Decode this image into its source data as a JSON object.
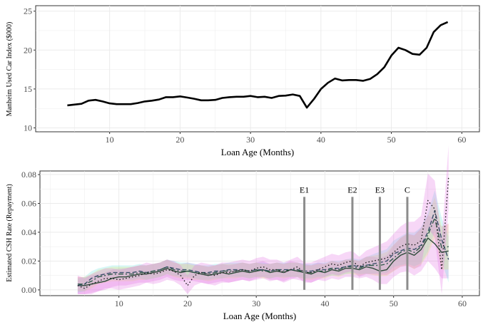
{
  "chart_data": [
    {
      "type": "line",
      "xlabel": "Loan Age (Months)",
      "ylabel": "Manheim Used Car Index ($000)",
      "xlim": [
        -0.5,
        62.5
      ],
      "ylim": [
        9.5,
        25.7
      ],
      "xticks": [
        10,
        20,
        30,
        40,
        50,
        60
      ],
      "yticks": [
        10,
        15,
        20,
        25
      ],
      "grid": true,
      "series": [
        {
          "x": [
            4,
            5,
            6,
            7,
            8,
            9,
            10,
            11,
            12,
            13,
            14,
            15,
            16,
            17,
            18,
            19,
            20,
            21,
            22,
            23,
            24,
            25,
            26,
            27,
            28,
            29,
            30,
            31,
            32,
            33,
            34,
            35,
            36,
            37,
            38,
            39,
            40,
            41,
            42,
            43,
            44,
            45,
            46,
            47,
            48,
            49,
            50,
            51,
            52,
            53,
            54,
            55,
            56,
            57,
            58
          ],
          "values": [
            12.9,
            13.0,
            13.1,
            13.5,
            13.6,
            13.4,
            13.15,
            13.05,
            13.05,
            13.05,
            13.2,
            13.4,
            13.5,
            13.65,
            13.95,
            13.95,
            14.05,
            13.9,
            13.75,
            13.55,
            13.55,
            13.6,
            13.85,
            13.95,
            14.0,
            14.0,
            14.1,
            13.95,
            14.0,
            13.85,
            14.1,
            14.15,
            14.3,
            14.1,
            12.6,
            13.7,
            15.0,
            15.8,
            16.35,
            16.1,
            16.15,
            16.15,
            16.05,
            16.3,
            16.9,
            17.8,
            19.3,
            20.3,
            20.0,
            19.5,
            19.4,
            20.3,
            22.3,
            23.2,
            23.6
          ]
        }
      ]
    },
    {
      "type": "line",
      "xlabel": "Loan Age (Months)",
      "ylabel": "Estimated CSH Rate (Repayment)",
      "xlim": [
        -1.5,
        62.5
      ],
      "ylim": [
        -0.004,
        0.0825
      ],
      "xticks": [
        10,
        20,
        30,
        40,
        50,
        60
      ],
      "yticks": [
        0.0,
        0.02,
        0.04,
        0.06,
        0.08
      ],
      "ytick_labels": [
        "0.00",
        "0.02",
        "0.04",
        "0.06",
        "0.08"
      ],
      "grid": true,
      "events": [
        {
          "label": "E1",
          "x": 37
        },
        {
          "label": "E2",
          "x": 44
        },
        {
          "label": "E3",
          "x": 48
        },
        {
          "label": "C",
          "x": 52
        }
      ],
      "series": [
        {
          "style": "solid",
          "color": "#2e4a3a",
          "band_color": "#e36ee3",
          "x": [
            4,
            5,
            6,
            7,
            8,
            9,
            10,
            11,
            12,
            13,
            14,
            15,
            16,
            17,
            18,
            19,
            20,
            21,
            22,
            23,
            24,
            25,
            26,
            27,
            28,
            29,
            30,
            31,
            32,
            33,
            34,
            35,
            36,
            37,
            38,
            39,
            40,
            41,
            42,
            43,
            44,
            45,
            46,
            47,
            48,
            49,
            50,
            51,
            52,
            53,
            54,
            55,
            56,
            57,
            58
          ],
          "values": [
            0.003,
            0.003,
            0.004,
            0.005,
            0.006,
            0.008,
            0.009,
            0.009,
            0.01,
            0.011,
            0.011,
            0.012,
            0.013,
            0.015,
            0.013,
            0.012,
            0.013,
            0.012,
            0.011,
            0.01,
            0.011,
            0.012,
            0.011,
            0.012,
            0.013,
            0.012,
            0.013,
            0.014,
            0.012,
            0.013,
            0.012,
            0.014,
            0.013,
            0.012,
            0.011,
            0.013,
            0.012,
            0.014,
            0.013,
            0.015,
            0.015,
            0.014,
            0.016,
            0.015,
            0.013,
            0.014,
            0.02,
            0.024,
            0.026,
            0.024,
            0.028,
            0.036,
            0.032,
            0.026,
            0.027
          ],
          "band": 0.006
        },
        {
          "style": "dashed",
          "color": "#3a4f6a",
          "band_color": "#6ee3e3",
          "x": [
            4,
            5,
            6,
            7,
            8,
            9,
            10,
            11,
            12,
            13,
            14,
            15,
            16,
            17,
            18,
            19,
            20,
            21,
            22,
            23,
            24,
            25,
            26,
            27,
            28,
            29,
            30,
            31,
            32,
            33,
            34,
            35,
            36,
            37,
            38,
            39,
            40,
            41,
            42,
            43,
            44,
            45,
            46,
            47,
            48,
            49,
            50,
            51,
            52,
            53,
            54,
            55,
            56,
            57,
            58
          ],
          "values": [
            0.003,
            0.004,
            0.008,
            0.01,
            0.011,
            0.012,
            0.012,
            0.012,
            0.012,
            0.013,
            0.012,
            0.013,
            0.014,
            0.016,
            0.015,
            0.014,
            0.014,
            0.013,
            0.012,
            0.012,
            0.013,
            0.013,
            0.014,
            0.014,
            0.014,
            0.013,
            0.014,
            0.014,
            0.013,
            0.014,
            0.014,
            0.014,
            0.014,
            0.013,
            0.013,
            0.014,
            0.014,
            0.015,
            0.015,
            0.016,
            0.017,
            0.016,
            0.017,
            0.018,
            0.019,
            0.02,
            0.025,
            0.027,
            0.029,
            0.028,
            0.031,
            0.04,
            0.055,
            0.035,
            0.021
          ],
          "band": 0.005
        },
        {
          "style": "dotdash",
          "color": "#2f5a4a",
          "band_color": "#e3e36e",
          "x": [
            4,
            5,
            6,
            7,
            8,
            9,
            10,
            11,
            12,
            13,
            14,
            15,
            16,
            17,
            18,
            19,
            20,
            21,
            22,
            23,
            24,
            25,
            26,
            27,
            28,
            29,
            30,
            31,
            32,
            33,
            34,
            35,
            36,
            37,
            38,
            39,
            40,
            41,
            42,
            43,
            44,
            45,
            46,
            47,
            48,
            49,
            50,
            51,
            52,
            53,
            54,
            55,
            56,
            57,
            58
          ],
          "values": [
            0.004,
            0.004,
            0.006,
            0.009,
            0.01,
            0.011,
            0.011,
            0.011,
            0.011,
            0.012,
            0.012,
            0.013,
            0.014,
            0.016,
            0.014,
            0.013,
            0.013,
            0.012,
            0.012,
            0.011,
            0.012,
            0.013,
            0.013,
            0.013,
            0.014,
            0.013,
            0.014,
            0.013,
            0.013,
            0.014,
            0.013,
            0.014,
            0.014,
            0.012,
            0.012,
            0.013,
            0.013,
            0.015,
            0.014,
            0.016,
            0.016,
            0.015,
            0.017,
            0.017,
            0.017,
            0.018,
            0.022,
            0.026,
            0.028,
            0.026,
            0.03,
            0.038,
            0.05,
            0.029,
            0.03
          ],
          "band": 0.005
        },
        {
          "style": "dotted",
          "color": "#1a1a1a",
          "band_color": "#e36ee3",
          "x": [
            4,
            5,
            6,
            7,
            8,
            9,
            10,
            11,
            12,
            13,
            14,
            15,
            16,
            17,
            18,
            19,
            20,
            21,
            22,
            23,
            24,
            25,
            26,
            27,
            28,
            29,
            30,
            31,
            32,
            33,
            34,
            35,
            36,
            37,
            38,
            39,
            40,
            41,
            42,
            43,
            44,
            45,
            46,
            47,
            48,
            49,
            50,
            51,
            52,
            53,
            54,
            55,
            56,
            57,
            58
          ],
          "values": [
            0.003,
            0.001,
            0.004,
            0.006,
            0.008,
            0.008,
            0.007,
            0.008,
            0.009,
            0.01,
            0.012,
            0.011,
            0.012,
            0.014,
            0.013,
            0.01,
            0.003,
            0.01,
            0.012,
            0.011,
            0.01,
            0.012,
            0.012,
            0.013,
            0.014,
            0.013,
            0.015,
            0.016,
            0.014,
            0.014,
            0.012,
            0.014,
            0.016,
            0.012,
            0.012,
            0.014,
            0.016,
            0.018,
            0.017,
            0.019,
            0.02,
            0.016,
            0.019,
            0.02,
            0.021,
            0.022,
            0.026,
            0.03,
            0.032,
            0.031,
            0.034,
            0.062,
            0.056,
            0.014,
            0.078
          ],
          "band": 0.007
        }
      ]
    }
  ]
}
